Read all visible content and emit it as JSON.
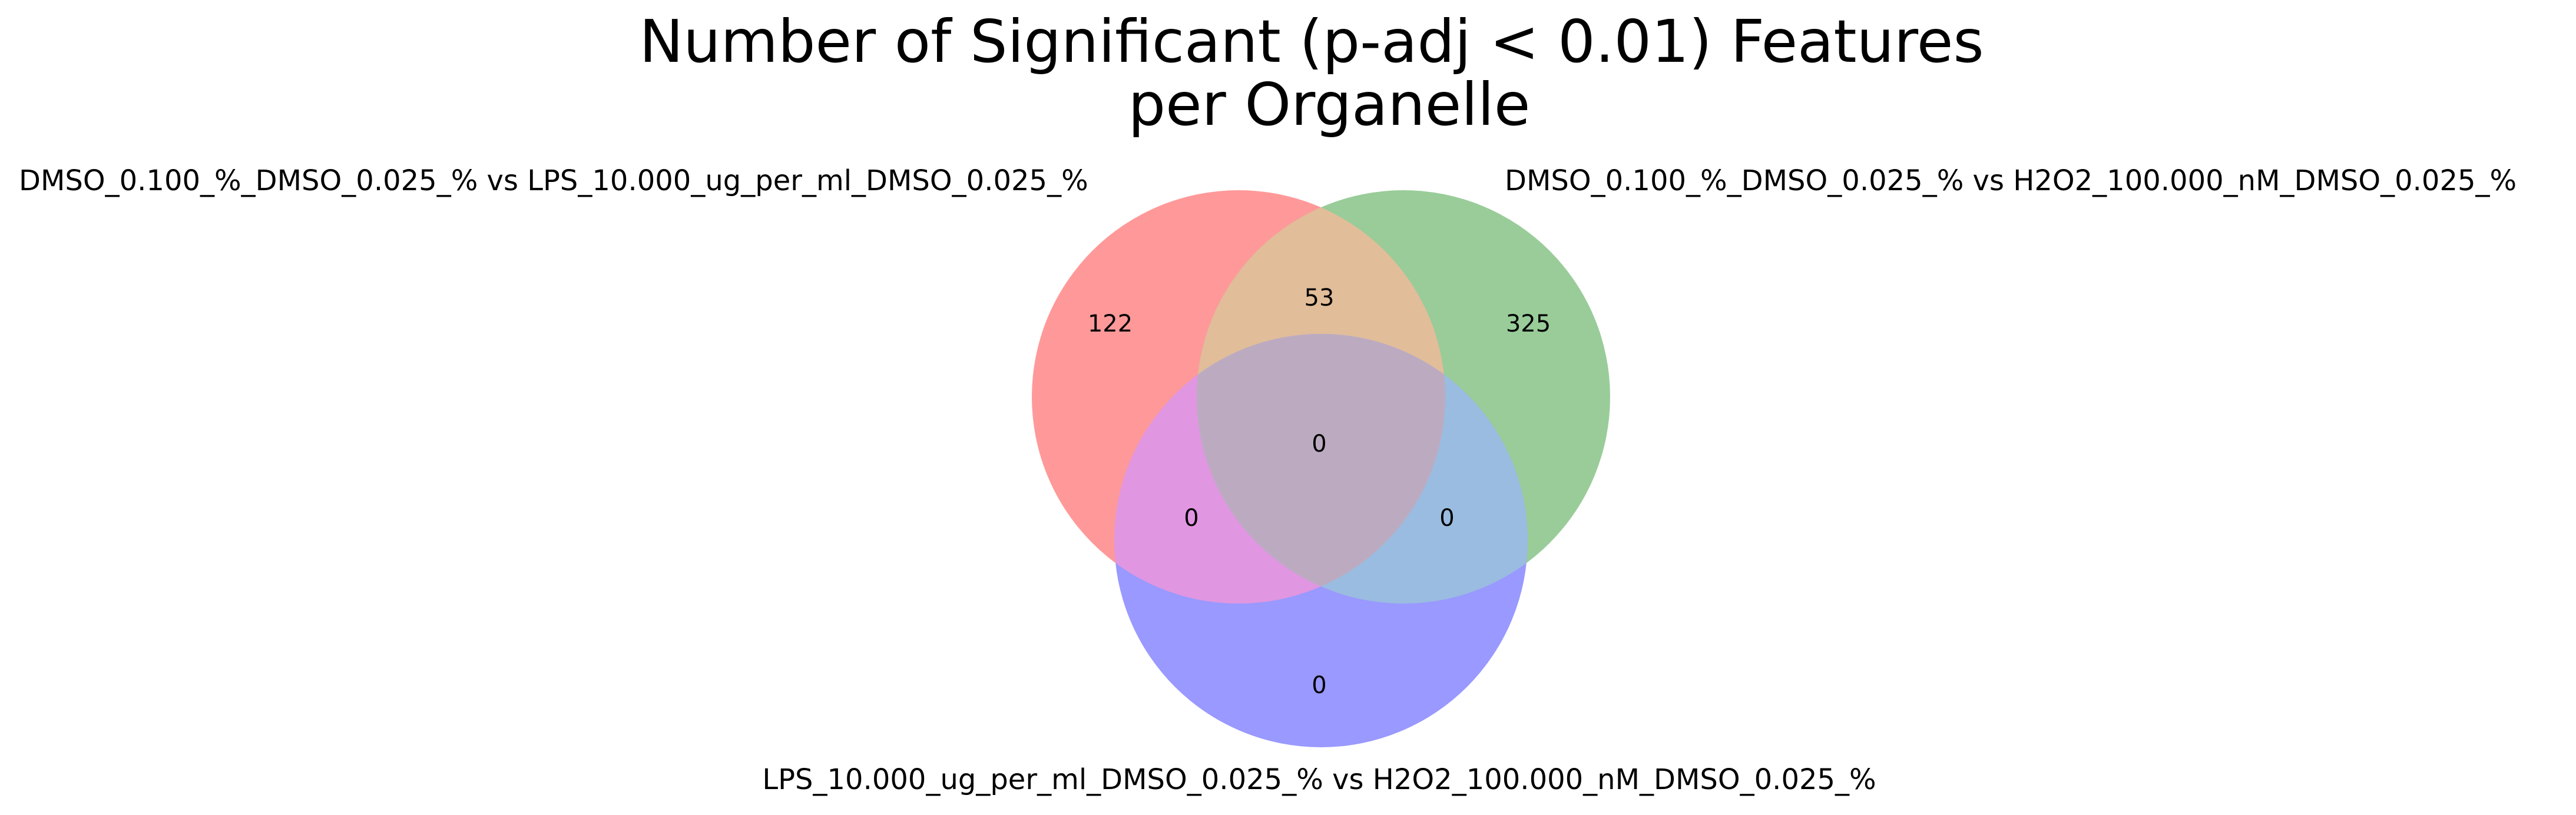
{
  "chart_data": {
    "type": "venn",
    "title_lines": [
      "Number of Significant (p-adj < 0.01) Features",
      "per Organelle"
    ],
    "sets": [
      {
        "name": "DMSO_0.100_%_DMSO_0.025_% vs LPS_10.000_ug_per_ml_DMSO_0.025_%",
        "color": "#ff0000"
      },
      {
        "name": "DMSO_0.100_%_DMSO_0.025_% vs H2O2_100.000_nM_DMSO_0.025_%",
        "color": "#008000"
      },
      {
        "name": "LPS_10.000_ug_per_ml_DMSO_0.025_% vs H2O2_100.000_nM_DMSO_0.025_%",
        "color": "#0000ff"
      }
    ],
    "regions": [
      {
        "id": "A_only",
        "sets": [
          "A"
        ],
        "value": "122"
      },
      {
        "id": "B_only",
        "sets": [
          "B"
        ],
        "value": "325"
      },
      {
        "id": "C_only",
        "sets": [
          "C"
        ],
        "value": "0"
      },
      {
        "id": "AB",
        "sets": [
          "A",
          "B"
        ],
        "value": "53"
      },
      {
        "id": "AC",
        "sets": [
          "A",
          "C"
        ],
        "value": "0"
      },
      {
        "id": "BC",
        "sets": [
          "B",
          "C"
        ],
        "value": "0"
      },
      {
        "id": "ABC",
        "sets": [
          "A",
          "B",
          "C"
        ],
        "value": "0"
      }
    ]
  }
}
